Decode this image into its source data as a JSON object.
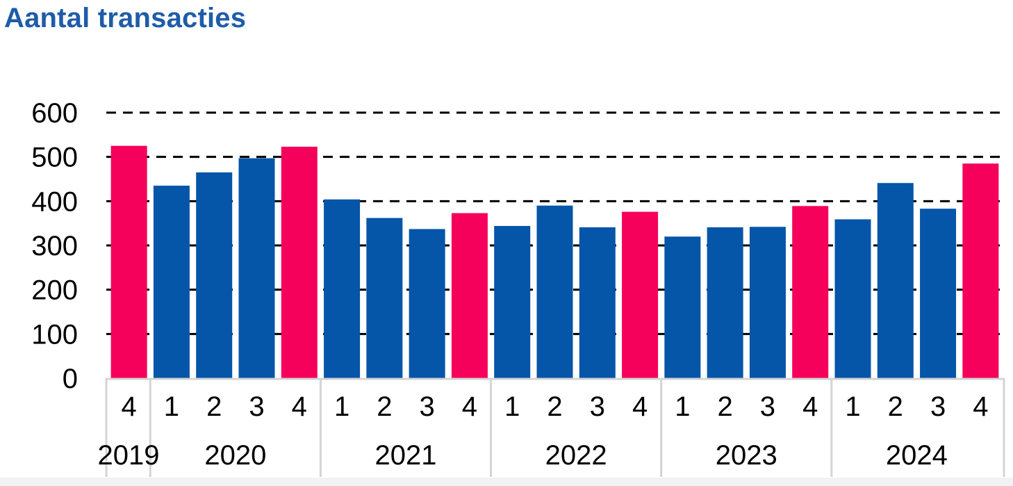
{
  "chart_data": {
    "type": "bar",
    "title": "Aantal transacties",
    "xlabel": "",
    "ylabel": "",
    "ylim": [
      0,
      600
    ],
    "yticks": [
      0,
      100,
      200,
      300,
      400,
      500,
      600
    ],
    "grid": "dashed horizontal",
    "years": [
      {
        "label": "2019",
        "quarters": [
          "4"
        ]
      },
      {
        "label": "2020",
        "quarters": [
          "1",
          "2",
          "3",
          "4"
        ]
      },
      {
        "label": "2021",
        "quarters": [
          "1",
          "2",
          "3",
          "4"
        ]
      },
      {
        "label": "2022",
        "quarters": [
          "1",
          "2",
          "3",
          "4"
        ]
      },
      {
        "label": "2023",
        "quarters": [
          "1",
          "2",
          "3",
          "4"
        ]
      },
      {
        "label": "2024",
        "quarters": [
          "1",
          "2",
          "3",
          "4"
        ]
      }
    ],
    "categories": [
      "2019 Q4",
      "2020 Q1",
      "2020 Q2",
      "2020 Q3",
      "2020 Q4",
      "2021 Q1",
      "2021 Q2",
      "2021 Q3",
      "2021 Q4",
      "2022 Q1",
      "2022 Q2",
      "2022 Q3",
      "2022 Q4",
      "2023 Q1",
      "2023 Q2",
      "2023 Q3",
      "2023 Q4",
      "2024 Q1",
      "2024 Q2",
      "2024 Q3",
      "2024 Q4"
    ],
    "values": [
      525,
      435,
      465,
      497,
      523,
      404,
      362,
      337,
      373,
      344,
      390,
      341,
      376,
      320,
      341,
      342,
      389,
      359,
      441,
      383,
      485
    ],
    "colors": {
      "q4": "#f5005a",
      "other": "#0555a8"
    }
  }
}
